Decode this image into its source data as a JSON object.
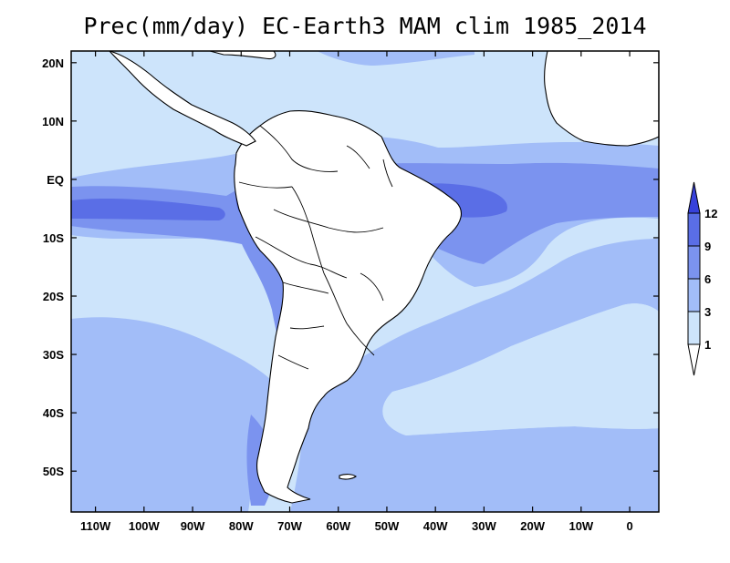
{
  "map": {
    "title": "Prec(mm/day) EC-Earth3 MAM clim 1985_2014",
    "variable": "Precipitation",
    "units": "mm/day",
    "projection": "cylindrical equidistant",
    "extent": {
      "lon": [
        -115,
        6
      ],
      "lat": [
        -57,
        22
      ]
    },
    "lon_ticks": [
      "110W",
      "100W",
      "90W",
      "80W",
      "70W",
      "60W",
      "50W",
      "40W",
      "30W",
      "20W",
      "10W",
      "0"
    ],
    "lat_ticks": [
      "20N",
      "10N",
      "EQ",
      "10S",
      "20S",
      "30S",
      "40S",
      "50S"
    ],
    "colorbar": {
      "levels": [
        "1",
        "3",
        "6",
        "9",
        "12"
      ],
      "colors": [
        "#ffffff",
        "#cde4fb",
        "#a2bdf8",
        "#7b93ef",
        "#5a6ee6",
        "#3741db"
      ],
      "extend": "both"
    },
    "land_color": "#ffffff",
    "coastline_color": "#000000"
  }
}
